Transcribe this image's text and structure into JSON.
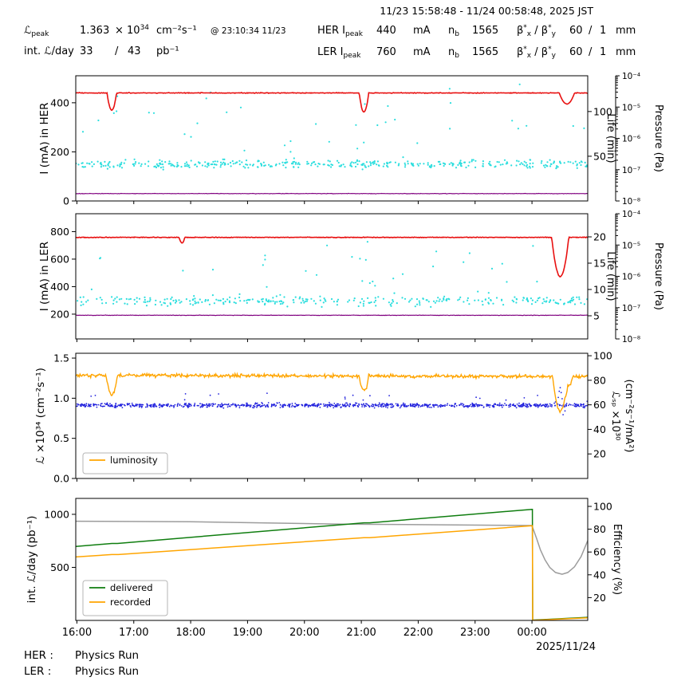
{
  "header": {
    "title": "11/23 15:58:48 - 11/24 00:58:48, 2025 JST",
    "lpeak": {
      "sym": "ℒ",
      "sub": "peak",
      "value": "1.363",
      "pow_base": "× 10",
      "pow_exp": "34",
      "units": "cm⁻²s⁻¹",
      "at": "@ 23:10:34 11/23"
    },
    "intlum": {
      "label": "int. ℒ/day",
      "value": "33",
      "sep": "/",
      "total": "43",
      "units": "pb⁻¹"
    }
  },
  "beams": [
    {
      "ring": "HER",
      "i_sym": "I",
      "i_sub": "peak",
      "current": "440",
      "current_units": "mA",
      "nb_sym": "n",
      "nb_sub": "b",
      "nb_value": "1565",
      "beta_sym": "β",
      "beta_star": "*",
      "beta_x": "x",
      "beta_slash": " / ",
      "beta_y": "y",
      "beta_val_x": "60",
      "beta_sep": "/",
      "beta_val_y": "1",
      "beta_units": "mm"
    },
    {
      "ring": "LER",
      "i_sym": "I",
      "i_sub": "peak",
      "current": "760",
      "current_units": "mA",
      "nb_sym": "n",
      "nb_sub": "b",
      "nb_value": "1565",
      "beta_sym": "β",
      "beta_star": "*",
      "beta_x": "x",
      "beta_slash": " / ",
      "beta_y": "y",
      "beta_val_x": "60",
      "beta_sep": "/",
      "beta_val_y": "1",
      "beta_units": "mm"
    }
  ],
  "footer": {
    "rows": [
      {
        "label": "HER :",
        "value": "Physics Run"
      },
      {
        "label": "LER :",
        "value": "Physics Run"
      }
    ]
  },
  "chart_data": {
    "type": "line",
    "subtype": "multi-panel accelerator time series",
    "time_start": "11/23 15:58:48",
    "time_end": "11/24 00:58:48",
    "time_range_minutes": 540,
    "x_ticks": [
      {
        "t": 1.2,
        "label": "16:00"
      },
      {
        "t": 61.2,
        "label": "17:00"
      },
      {
        "t": 121.2,
        "label": "18:00"
      },
      {
        "t": 181.2,
        "label": "19:00"
      },
      {
        "t": 241.2,
        "label": "20:00"
      },
      {
        "t": 301.2,
        "label": "21:00"
      },
      {
        "t": 361.2,
        "label": "22:00"
      },
      {
        "t": 421.2,
        "label": "23:00"
      },
      {
        "t": 481.2,
        "label": "00:00"
      }
    ],
    "x_date_label": "2025/11/24",
    "panels": [
      {
        "id": "her",
        "ylabel": "I (mA) in HER",
        "ylim": [
          0,
          510
        ],
        "ytick_vals": [
          0,
          200,
          400
        ],
        "right_axes": [
          {
            "id": "life",
            "label": "Life (min)",
            "lim": [
              0,
              140
            ],
            "ticks": [
              50,
              100
            ]
          },
          {
            "id": "pressure",
            "label": "Pressure (Pa)",
            "decades": [
              -8,
              -4
            ],
            "tick_labels": [
              "10⁻⁴",
              "10⁻⁵",
              "10⁻⁶",
              "10⁻⁷",
              "10⁻⁸"
            ]
          }
        ],
        "series": [
          {
            "name": "her-lifetime",
            "kind": "scatter",
            "axis": "life",
            "color": "#2bdede",
            "r": 1.1,
            "n": 430,
            "base": 41,
            "spread": 4.5,
            "outlier_frac": 0.1,
            "outlier_max": 95,
            "seed": 7
          },
          {
            "name": "her-pressure",
            "kind": "noisy-line",
            "axis": "left",
            "color": "#800080",
            "lw": 1.2,
            "base": [
              [
                0,
                30
              ],
              [
                540,
                30
              ]
            ],
            "noise": 0.9
          },
          {
            "name": "her-current",
            "kind": "noisy-line",
            "axis": "left",
            "color": "#e81010",
            "lw": 1.6,
            "base": [
              [
                0,
                440
              ],
              [
                540,
                440
              ]
            ],
            "noise": 1.3,
            "dips": [
              {
                "t": 38,
                "w": 5,
                "d": 70
              },
              {
                "t": 304,
                "w": 5,
                "d": 78
              },
              {
                "t": 518,
                "w": 8,
                "d": 45
              }
            ]
          }
        ]
      },
      {
        "id": "ler",
        "ylabel": "I (mA) in LER",
        "ylim": [
          20,
          930
        ],
        "ytick_vals": [
          200,
          400,
          600,
          800
        ],
        "right_axes": [
          {
            "id": "life",
            "label": "Life (min)",
            "lim": [
              0.6,
              24.4
            ],
            "ticks": [
              5,
              10,
              15,
              20
            ]
          },
          {
            "id": "pressure",
            "label": "Pressure (Pa)",
            "decades": [
              -8,
              -4
            ],
            "tick_labels": [
              "10⁻⁴",
              "10⁻⁵",
              "10⁻⁶",
              "10⁻⁷",
              "10⁻⁸"
            ]
          }
        ],
        "series": [
          {
            "name": "ler-lifetime",
            "kind": "scatter",
            "axis": "life",
            "color": "#2bdede",
            "r": 1.1,
            "n": 340,
            "base": 7.8,
            "spread": 0.9,
            "outlier_frac": 0.12,
            "outlier_max": 11,
            "seed": 8
          },
          {
            "name": "ler-pressure",
            "kind": "noisy-line",
            "axis": "left",
            "color": "#800080",
            "lw": 1.2,
            "base": [
              [
                0,
                192
              ],
              [
                540,
                192
              ]
            ],
            "noise": 1.6
          },
          {
            "name": "ler-current",
            "kind": "noisy-line",
            "axis": "left",
            "color": "#e81010",
            "lw": 1.6,
            "base": [
              [
                0,
                758
              ],
              [
                540,
                758
              ]
            ],
            "noise": 2.2,
            "dips": [
              {
                "t": 112,
                "w": 3,
                "d": 42
              },
              {
                "t": 511,
                "w": 9,
                "d": 285
              }
            ]
          }
        ]
      },
      {
        "id": "luminosity",
        "ylabel": "ℒ ×10³⁴ (cm⁻²s⁻¹)",
        "ylim": [
          0,
          1.56
        ],
        "ytick_vals": [
          0,
          0.5,
          1,
          1.5
        ],
        "ytick_labels": [
          "0.0",
          "0.5",
          "1.0",
          "1.5"
        ],
        "right_axes": [
          {
            "id": "lsp",
            "label": "ℒₛₚ ×10³⁰",
            "label2": "(cm⁻²s⁻¹/mA²)",
            "lim": [
              0,
              102
            ],
            "ticks": [
              20,
              40,
              60,
              80,
              100
            ]
          }
        ],
        "legend": {
          "items": [
            {
              "label": "luminosity",
              "color": "#ffa500"
            }
          ]
        },
        "series": [
          {
            "name": "specific-luminosity",
            "kind": "scatter",
            "axis": "lsp",
            "color": "#2222dd",
            "r": 0.9,
            "n": 950,
            "base": 59.5,
            "spread": 1.7,
            "outlier_frac": 0.02,
            "outlier_max": 10,
            "seed": 9,
            "extra": [
              [
                509,
                66
              ],
              [
                510,
                71
              ],
              [
                511,
                74
              ],
              [
                512,
                70
              ],
              [
                513,
                65
              ],
              [
                514,
                52
              ],
              [
                516,
                55
              ]
            ]
          },
          {
            "name": "luminosity",
            "kind": "noisy-line",
            "axis": "left",
            "color": "#ffa500",
            "lw": 1.4,
            "base": [
              [
                0,
                1.285
              ],
              [
                540,
                1.27
              ]
            ],
            "noise": 0.021,
            "dips": [
              {
                "t": 38,
                "w": 6,
                "d": 0.24
              },
              {
                "t": 304,
                "w": 5,
                "d": 0.19
              },
              {
                "t": 511,
                "w": 8,
                "d": 0.43
              },
              {
                "t": 520,
                "w": 4,
                "d": 0.12
              }
            ]
          }
        ]
      },
      {
        "id": "integrated",
        "ylabel": "int. ℒ/day (pb⁻¹)",
        "ylim": [
          0,
          1150
        ],
        "ytick_vals": [
          500,
          1000
        ],
        "right_axes": [
          {
            "id": "eff",
            "label": "Efficiency (%)",
            "lim": [
              0,
              107
            ],
            "ticks": [
              20,
              40,
              60,
              80,
              100
            ]
          }
        ],
        "legend": {
          "items": [
            {
              "label": "delivered",
              "color": "#0f7d0f"
            },
            {
              "label": "recorded",
              "color": "#ffa500"
            }
          ]
        },
        "series": [
          {
            "name": "efficiency",
            "kind": "line",
            "axis": "eff",
            "color": "#9c9c9c",
            "lw": 1.5,
            "points": [
              [
                0,
                87
              ],
              [
                120,
                86.5
              ],
              [
                200,
                85.5
              ],
              [
                280,
                84.5
              ],
              [
                360,
                84
              ],
              [
                440,
                83.5
              ],
              [
                481,
                83.2
              ],
              [
                483,
                79
              ],
              [
                486,
                72
              ],
              [
                490,
                62
              ],
              [
                495,
                53
              ],
              [
                500,
                46.5
              ],
              [
                506,
                42
              ],
              [
                513,
                40.5
              ],
              [
                519,
                42
              ],
              [
                526,
                47
              ],
              [
                533,
                56
              ],
              [
                540,
                70
              ]
            ]
          },
          {
            "name": "delivered",
            "kind": "line",
            "axis": "left",
            "color": "#0f7d0f",
            "lw": 1.5,
            "points": [
              [
                0,
                697
              ],
              [
                38,
                725
              ],
              [
                44,
                725
              ],
              [
                304,
                920
              ],
              [
                310,
                920
              ],
              [
                481,
                1047
              ],
              [
                481.6,
                1047
              ],
              [
                482,
                3
              ],
              [
                540,
                29
              ]
            ]
          },
          {
            "name": "recorded",
            "kind": "line",
            "axis": "left",
            "color": "#ffa500",
            "lw": 1.5,
            "points": [
              [
                0,
                598
              ],
              [
                38,
                621
              ],
              [
                45,
                621
              ],
              [
                304,
                780
              ],
              [
                310,
                780
              ],
              [
                481,
                892
              ],
              [
                481.6,
                892
              ],
              [
                482,
                1
              ],
              [
                540,
                24
              ]
            ]
          }
        ]
      }
    ]
  }
}
